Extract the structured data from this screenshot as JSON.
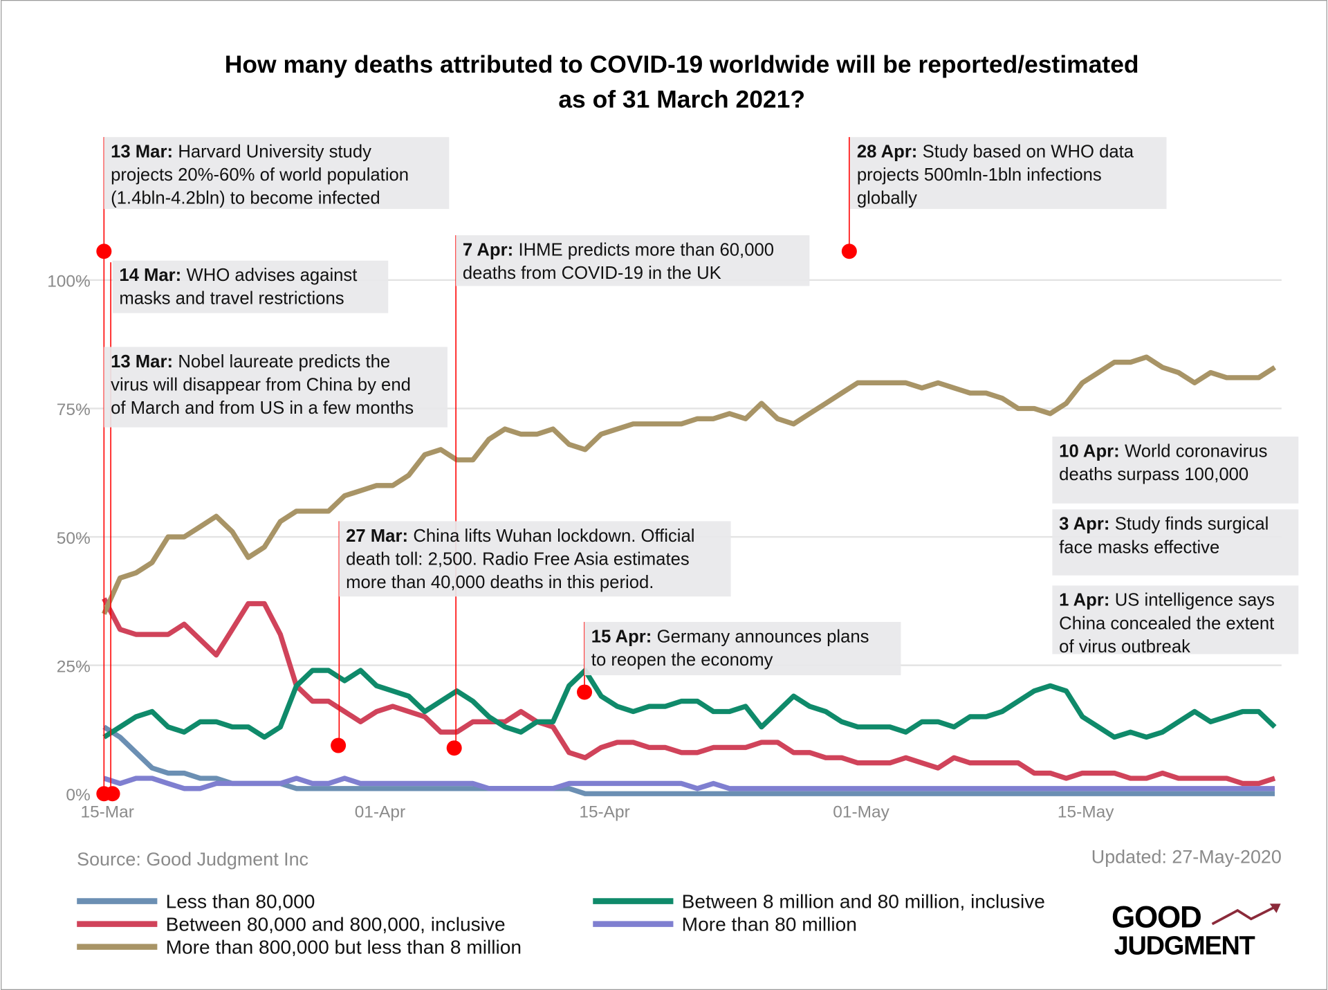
{
  "chart_data": {
    "type": "line",
    "title": "How many deaths attributed to COVID-19 worldwide will be reported/estimated as of 31 March 2021?",
    "title_lines": [
      "How many deaths attributed to COVID-19 worldwide will be reported/estimated",
      "as of 31 March 2021?"
    ],
    "xlabel": "",
    "ylabel": "",
    "ylim": [
      0,
      100
    ],
    "y_ticks": [
      "0%",
      "25%",
      "50%",
      "75%",
      "100%"
    ],
    "x_ticks": [
      "15-Mar",
      "01-Apr",
      "15-Apr",
      "01-May",
      "15-May"
    ],
    "grid": true,
    "legend_position": "bottom",
    "x": [
      "15-Mar",
      "16-Mar",
      "17-Mar",
      "18-Mar",
      "19-Mar",
      "20-Mar",
      "21-Mar",
      "22-Mar",
      "23-Mar",
      "24-Mar",
      "25-Mar",
      "26-Mar",
      "27-Mar",
      "28-Mar",
      "29-Mar",
      "30-Mar",
      "31-Mar",
      "01-Apr",
      "02-Apr",
      "03-Apr",
      "04-Apr",
      "05-Apr",
      "06-Apr",
      "07-Apr",
      "08-Apr",
      "09-Apr",
      "10-Apr",
      "11-Apr",
      "12-Apr",
      "13-Apr",
      "14-Apr",
      "15-Apr",
      "16-Apr",
      "17-Apr",
      "18-Apr",
      "19-Apr",
      "20-Apr",
      "21-Apr",
      "22-Apr",
      "23-Apr",
      "24-Apr",
      "25-Apr",
      "26-Apr",
      "27-Apr",
      "28-Apr",
      "29-Apr",
      "30-Apr",
      "01-May",
      "02-May",
      "03-May",
      "04-May",
      "05-May",
      "06-May",
      "07-May",
      "08-May",
      "09-May",
      "10-May",
      "11-May",
      "12-May",
      "13-May",
      "14-May",
      "15-May",
      "16-May",
      "17-May",
      "18-May",
      "19-May",
      "20-May",
      "21-May",
      "22-May",
      "23-May",
      "24-May",
      "25-May",
      "26-May",
      "27-May"
    ],
    "series": [
      {
        "name": "Less than 80,000",
        "color": "#6b8fb3",
        "values": [
          13,
          11,
          8,
          5,
          4,
          4,
          3,
          3,
          2,
          2,
          2,
          2,
          1,
          1,
          1,
          1,
          1,
          1,
          1,
          1,
          1,
          1,
          1,
          1,
          1,
          1,
          1,
          1,
          1,
          1,
          0,
          0,
          0,
          0,
          0,
          0,
          0,
          0,
          0,
          0,
          0,
          0,
          0,
          0,
          0,
          0,
          0,
          0,
          0,
          0,
          0,
          0,
          0,
          0,
          0,
          0,
          0,
          0,
          0,
          0,
          0,
          0,
          0,
          0,
          0,
          0,
          0,
          0,
          0,
          0,
          0,
          0,
          0,
          0
        ]
      },
      {
        "name": "More than 80 million",
        "color": "#7f7fd0",
        "values": [
          3,
          2,
          3,
          3,
          2,
          1,
          1,
          2,
          2,
          2,
          2,
          2,
          3,
          2,
          2,
          3,
          2,
          2,
          2,
          2,
          2,
          2,
          2,
          2,
          1,
          1,
          1,
          1,
          1,
          2,
          2,
          2,
          2,
          2,
          2,
          2,
          2,
          1,
          2,
          1,
          1,
          1,
          1,
          1,
          1,
          1,
          1,
          1,
          1,
          1,
          1,
          1,
          1,
          1,
          1,
          1,
          1,
          1,
          1,
          1,
          1,
          1,
          1,
          1,
          1,
          1,
          1,
          1,
          1,
          1,
          1,
          1,
          1,
          1
        ]
      },
      {
        "name": "Between 80,000 and 800,000, inclusive",
        "color": "#d0435a",
        "values": [
          38,
          32,
          31,
          31,
          31,
          33,
          30,
          27,
          32,
          37,
          37,
          31,
          21,
          18,
          18,
          16,
          14,
          16,
          17,
          16,
          15,
          12,
          12,
          14,
          14,
          14,
          16,
          14,
          13,
          8,
          7,
          9,
          10,
          10,
          9,
          9,
          8,
          8,
          9,
          9,
          9,
          10,
          10,
          8,
          8,
          7,
          7,
          6,
          6,
          6,
          7,
          6,
          5,
          7,
          6,
          6,
          6,
          6,
          4,
          4,
          3,
          4,
          4,
          4,
          3,
          3,
          4,
          3,
          3,
          3,
          3,
          2,
          2,
          3
        ]
      },
      {
        "name": "More than 800,000 but less than 8 million",
        "color": "#a89466",
        "values": [
          35,
          42,
          43,
          45,
          50,
          50,
          52,
          54,
          51,
          46,
          48,
          53,
          55,
          55,
          55,
          58,
          59,
          60,
          60,
          62,
          66,
          67,
          65,
          65,
          69,
          71,
          70,
          70,
          71,
          68,
          67,
          70,
          71,
          72,
          72,
          72,
          72,
          73,
          73,
          74,
          73,
          76,
          73,
          72,
          74,
          76,
          78,
          80,
          80,
          80,
          80,
          79,
          80,
          79,
          78,
          78,
          77,
          75,
          75,
          74,
          76,
          80,
          82,
          84,
          84,
          85,
          83,
          82,
          80,
          82,
          81,
          81,
          81,
          83
        ]
      },
      {
        "name": "Between 8 million and 80 million, inclusive",
        "color": "#0f8a6a",
        "values": [
          11,
          13,
          15,
          16,
          13,
          12,
          14,
          14,
          13,
          13,
          11,
          13,
          21,
          24,
          24,
          22,
          24,
          21,
          20,
          19,
          16,
          18,
          20,
          18,
          15,
          13,
          12,
          14,
          14,
          21,
          24,
          19,
          17,
          16,
          17,
          17,
          18,
          18,
          16,
          16,
          17,
          13,
          16,
          19,
          17,
          16,
          14,
          13,
          13,
          13,
          12,
          14,
          14,
          13,
          15,
          15,
          16,
          18,
          20,
          21,
          20,
          15,
          13,
          11,
          12,
          11,
          12,
          14,
          16,
          14,
          15,
          16,
          16,
          13
        ]
      }
    ],
    "legend_order": [
      0,
      2,
      3,
      4,
      1
    ],
    "annotations": [
      {
        "date": "13 Mar:",
        "lines": [
          "Harvard University study",
          "projects 20%-60% of world population",
          "(1.4bln-4.2bln) to become infected"
        ]
      },
      {
        "date": "14 Mar:",
        "lines": [
          "WHO advises against",
          "masks and travel restrictions"
        ]
      },
      {
        "date": "13 Mar:",
        "lines": [
          "Nobel laureate predicts the",
          "virus will disappear from China by end",
          "of March and from US in a few months"
        ]
      },
      {
        "date": "7 Apr:",
        "lines": [
          "IHME predicts more than 60,000",
          "deaths from COVID-19 in the UK"
        ]
      },
      {
        "date": "28 Apr:",
        "lines": [
          "Study based on WHO data",
          "projects 500mln-1bln infections",
          "globally"
        ]
      },
      {
        "date": "27 Mar:",
        "lines": [
          "China lifts Wuhan lockdown. Official",
          "death toll: 2,500. Radio Free Asia estimates",
          "more than 40,000 deaths in this period."
        ]
      },
      {
        "date": "15 Apr:",
        "lines": [
          "Germany announces plans",
          "to reopen the economy"
        ]
      },
      {
        "date": "10 Apr:",
        "lines": [
          "World coronavirus",
          "deaths surpass 100,000"
        ]
      },
      {
        "date": "3 Apr:",
        "lines": [
          "Study finds surgical",
          "face masks effective"
        ]
      },
      {
        "date": "1 Apr:",
        "lines": [
          "US intelligence says",
          "China concealed the extent",
          "of virus outbreak"
        ]
      }
    ],
    "annotation_color": "#ff0000",
    "source": "Source: Good Judgment Inc",
    "updated": "Updated: 27-May-2020"
  },
  "logo": {
    "line1": "GOOD",
    "line2": "JUDGMENT",
    "color": "#000000",
    "arrow_color": "#8b2a3a"
  }
}
